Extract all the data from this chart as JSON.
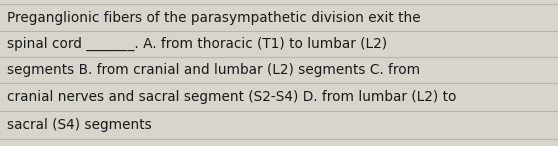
{
  "text_lines": [
    "Preganglionic fibers of the parasympathetic division exit the",
    "spinal cord _______. A. from thoracic (T1) to lumbar (L2)",
    "segments B. from cranial and lumbar (L2) segments C. from",
    "cranial nerves and sacral segment (S2-S4) D. from lumbar (L2) to",
    "sacral (S4) segments"
  ],
  "background_color": "#d8d5cc",
  "line_color": "#b8b5ac",
  "text_color": "#1a1a1a",
  "font_size": 9.8,
  "fig_width": 5.58,
  "fig_height": 1.46,
  "dpi": 100
}
